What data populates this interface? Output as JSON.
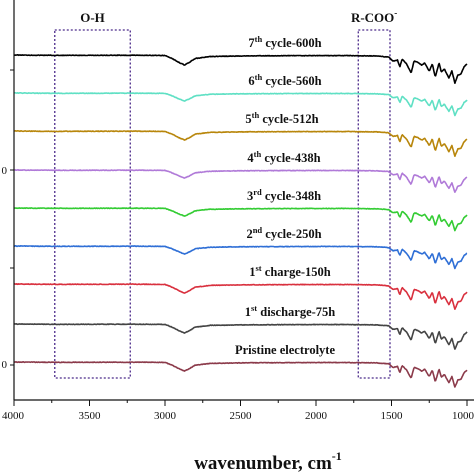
{
  "chart_data": {
    "type": "line",
    "xlabel": "wavenumber, cm",
    "xlabel_sup": "-1",
    "xlim": [
      4000,
      1000
    ],
    "x_ticks": [
      4000,
      3500,
      3000,
      2500,
      2000,
      1500,
      1000
    ],
    "x_tick_labels": [
      "4000",
      "3500",
      "3000",
      "2500",
      "2000",
      "1500",
      "1000"
    ],
    "y_tick_labels": [
      "0",
      "0"
    ],
    "regions": [
      {
        "label": "O-H",
        "label_sup": "",
        "x_range": [
          3730,
          3230
        ]
      },
      {
        "label": "R-COO",
        "label_sup": "-",
        "x_range": [
          1720,
          1510
        ]
      }
    ],
    "series": [
      {
        "name": "7th cycle-600h",
        "name_main": "7",
        "name_sup": "th",
        "name_rest": " cycle-600h",
        "color": "#000000"
      },
      {
        "name": "6th cycle-560h",
        "name_main": "6",
        "name_sup": "th",
        "name_rest": " cycle-560h",
        "color": "#5fe0c4"
      },
      {
        "name": "5th cycle-512h",
        "name_main": "5",
        "name_sup": "th",
        "name_rest": " cycle-512h",
        "color": "#b8860b"
      },
      {
        "name": "4th cycle-438h",
        "name_main": "4",
        "name_sup": "th",
        "name_rest": " cycle-438h",
        "color": "#b07ad8"
      },
      {
        "name": "3rd cycle-348h",
        "name_main": "3",
        "name_sup": "rd",
        "name_rest": " cycle-348h",
        "color": "#33cc33"
      },
      {
        "name": "2nd cycle-250h",
        "name_main": "2",
        "name_sup": "nd",
        "name_rest": " cycle-250h",
        "color": "#2f6fd6"
      },
      {
        "name": "1st charge-150h",
        "name_main": "1",
        "name_sup": "st",
        "name_rest": " charge-150h",
        "color": "#d9303e"
      },
      {
        "name": "1st discharge-75h",
        "name_main": "1",
        "name_sup": "st",
        "name_rest": " discharge-75h",
        "color": "#444444"
      },
      {
        "name": "Pristine electrolyte",
        "name_main": "Pristine electrolyte",
        "name_sup": "",
        "name_rest": "",
        "color": "#8b3a4a"
      }
    ],
    "spectrum_shape": {
      "x": [
        4000,
        3700,
        3400,
        3200,
        3000,
        2960,
        2900,
        2870,
        2840,
        2800,
        2700,
        2500,
        2200,
        2000,
        1800,
        1700,
        1600,
        1520,
        1490,
        1460,
        1445,
        1430,
        1400,
        1370,
        1350,
        1330,
        1300,
        1280,
        1250,
        1230,
        1210,
        1185,
        1170,
        1150,
        1120,
        1100,
        1080,
        1060,
        1040,
        1020,
        1000
      ],
      "absorbance": [
        0,
        0.04,
        0.03,
        0.02,
        0.05,
        0.3,
        0.8,
        1.0,
        0.75,
        0.35,
        0.15,
        0.1,
        0.07,
        0.06,
        0.06,
        0.08,
        0.1,
        0.2,
        0.6,
        0.5,
        1.2,
        0.4,
        0.9,
        1.8,
        0.6,
        0.7,
        1.0,
        0.8,
        1.6,
        0.9,
        2.2,
        0.8,
        1.7,
        1.4,
        2.3,
        1.6,
        2.8,
        2.0,
        1.9,
        1.2,
        0.9
      ]
    }
  }
}
